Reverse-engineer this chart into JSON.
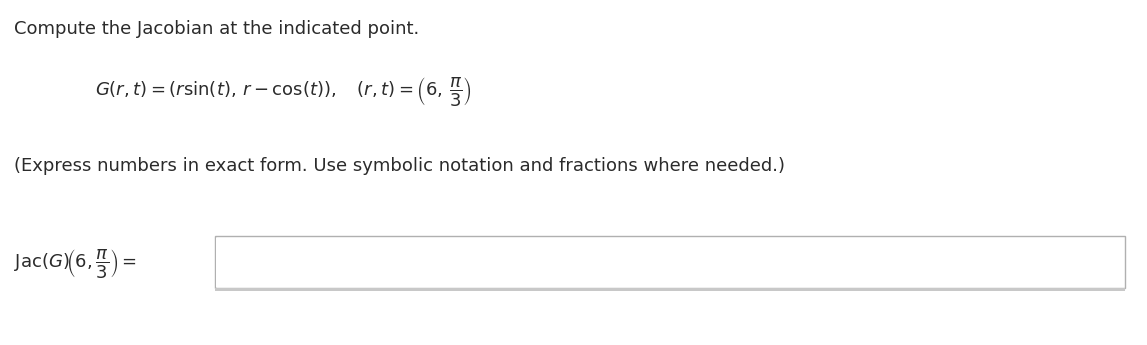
{
  "background_color": "#ffffff",
  "title_text": "Compute the Jacobian at the indicated point.",
  "title_fontsize": 13.0,
  "formula_fontsize": 13.0,
  "note_fontsize": 13.0,
  "jac_fontsize": 13.0,
  "box_facecolor": "#ffffff",
  "box_edgecolor": "#b0b0b0",
  "text_color": "#2b2b2b"
}
